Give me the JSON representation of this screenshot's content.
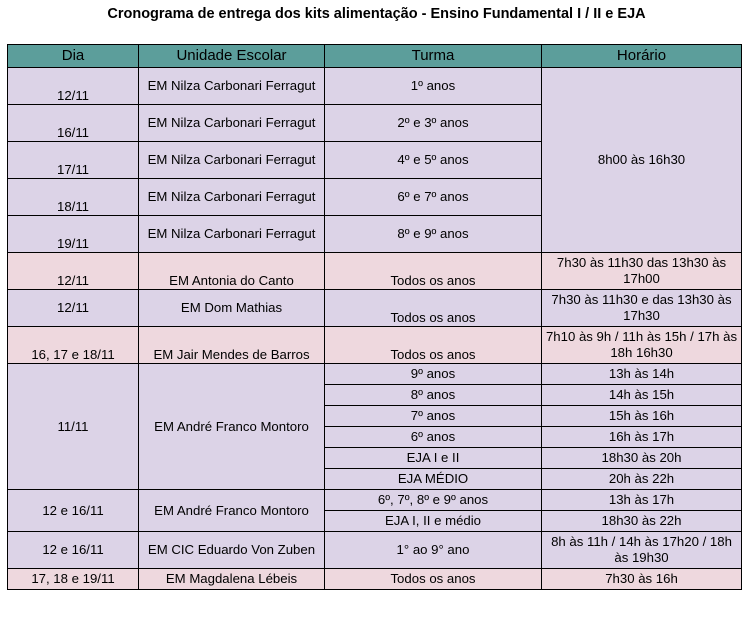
{
  "title": "Cronograma de entrega dos kits alimentação -  Ensino Fundamental I / II e EJA",
  "colors": {
    "header": "#5c9e9b",
    "lavender": "#dcd3e7",
    "pink": "#eed8de"
  },
  "headers": [
    "Dia",
    "Unidade Escolar",
    "Turma",
    "Horário"
  ],
  "rows": [
    {
      "dia": "12/11",
      "unidade": "EM Nilza Carbonari Ferragut",
      "turma": "1º anos"
    },
    {
      "dia": "16/11",
      "unidade": "EM Nilza Carbonari Ferragut",
      "turma": "2º e 3º anos"
    },
    {
      "dia": "17/11",
      "unidade": "EM Nilza Carbonari Ferragut",
      "turma": "4º e 5º anos"
    },
    {
      "dia": "18/11",
      "unidade": "EM Nilza Carbonari Ferragut",
      "turma": "6º e 7º anos"
    },
    {
      "dia": "19/11",
      "unidade": "EM Nilza Carbonari Ferragut",
      "turma": "8º e 9º anos"
    },
    {
      "dia": "12/11",
      "unidade": "EM Antonia do Canto",
      "turma": "Todos os anos",
      "horario": "7h30 às 11h30 das 13h30 às 17h00"
    },
    {
      "dia": "12/11",
      "unidade": "EM Dom Mathias",
      "turma": "Todos os anos",
      "horario": "7h30 às 11h30 e das 13h30 às 17h30"
    },
    {
      "dia": "16, 17 e 18/11",
      "unidade": "EM Jair Mendes de Barros",
      "turma": "Todos os anos",
      "horario": "7h10 às 9h / 11h às 15h / 17h às 18h 16h30"
    },
    {
      "dia": "11/11",
      "unidade": "EM André Franco Montoro",
      "turma": "9º anos",
      "horario": "13h às 14h"
    },
    {
      "turma": "8º anos",
      "horario": "14h às 15h"
    },
    {
      "turma": "7º anos",
      "horario": "15h às 16h"
    },
    {
      "turma": "6º anos",
      "horario": "16h às 17h"
    },
    {
      "turma": "EJA I e II",
      "horario": "18h30 às 20h"
    },
    {
      "turma": "EJA MÉDIO",
      "horario": "20h às 22h"
    },
    {
      "dia": "12 e 16/11",
      "unidade": "EM André Franco Montoro",
      "turma": "6º, 7º, 8º e 9º anos",
      "horario": "13h às 17h"
    },
    {
      "turma": "EJA I, II e médio",
      "horario": "18h30 às 22h"
    },
    {
      "dia": "12 e 16/11",
      "unidade": "EM CIC Eduardo Von Zuben",
      "turma": "1° ao 9° ano",
      "horario": "8h às 11h / 14h às 17h20 / 18h às 19h30"
    },
    {
      "dia": "17, 18 e 19/11",
      "unidade": "EM Magdalena Lébeis",
      "turma": "Todos os anos",
      "horario": "7h30 às 16h"
    }
  ],
  "horario_nilza": "8h00 às 16h30"
}
